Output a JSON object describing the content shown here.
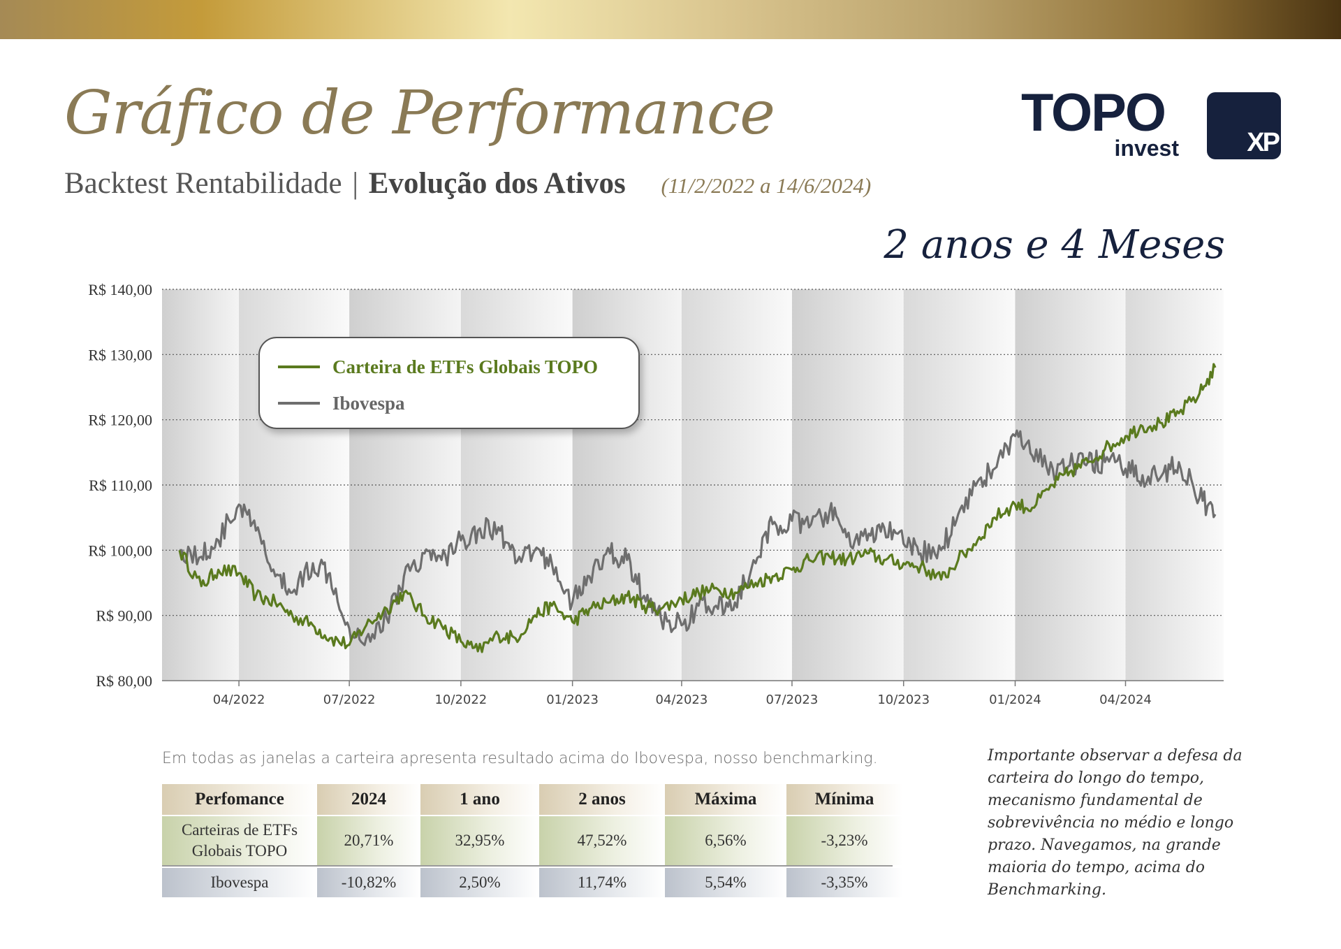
{
  "header": {
    "title": "Gráfico de Performance",
    "subtitle_main": "Backtest Rentabilidade",
    "subtitle_separator": "|",
    "subtitle_bold": "Evolução dos Ativos",
    "date_range": "(11/2/2022 a 14/6/2024)",
    "period": "2 anos e 4 Meses"
  },
  "logos": {
    "topo_word": "TOPO",
    "topo_sub": "invest",
    "xp": "XP"
  },
  "colors": {
    "green": "#5a7a1e",
    "gray": "#6e6e6e",
    "navy": "#16213d",
    "gold": "#8a7a55"
  },
  "chart_data": {
    "type": "line",
    "title": "",
    "xlabel": "",
    "ylabel": "",
    "ylim": [
      80,
      140
    ],
    "y_ticks": [
      80,
      90,
      100,
      110,
      120,
      130,
      140
    ],
    "y_tick_labels": [
      "R$ 80,00",
      "R$ 90,00",
      "R$ 100,00",
      "R$ 110,00",
      "R$ 120,00",
      "R$ 130,00",
      "R$ 140,00"
    ],
    "x_tick_labels": [
      "04/2022",
      "07/2022",
      "10/2022",
      "01/2023",
      "04/2023",
      "07/2023",
      "10/2023",
      "01/2024",
      "04/2024"
    ],
    "grid": true,
    "legend_position": "top-left",
    "x_start": "2022-02-11",
    "x_end": "2024-06-14",
    "series": [
      {
        "name": "Carteira de ETFs Globais TOPO",
        "color": "#5a7a1e",
        "points": [
          [
            "2022-02-11",
            100
          ],
          [
            "2022-03-01",
            94.5
          ],
          [
            "2022-03-15",
            97
          ],
          [
            "2022-04-01",
            96.5
          ],
          [
            "2022-04-15",
            93
          ],
          [
            "2022-05-01",
            92
          ],
          [
            "2022-05-15",
            90
          ],
          [
            "2022-06-01",
            88.5
          ],
          [
            "2022-06-15",
            86.5
          ],
          [
            "2022-07-01",
            85.5
          ],
          [
            "2022-07-15",
            88.5
          ],
          [
            "2022-08-01",
            91
          ],
          [
            "2022-08-15",
            93.5
          ],
          [
            "2022-09-01",
            90
          ],
          [
            "2022-09-15",
            88.5
          ],
          [
            "2022-10-01",
            86
          ],
          [
            "2022-10-15",
            84.5
          ],
          [
            "2022-11-01",
            87
          ],
          [
            "2022-11-15",
            86.5
          ],
          [
            "2022-12-01",
            90
          ],
          [
            "2022-12-15",
            91.5
          ],
          [
            "2023-01-01",
            89
          ],
          [
            "2023-01-15",
            91
          ],
          [
            "2023-02-01",
            92
          ],
          [
            "2023-02-15",
            93
          ],
          [
            "2023-03-01",
            91.5
          ],
          [
            "2023-03-15",
            91
          ],
          [
            "2023-04-01",
            92.5
          ],
          [
            "2023-04-15",
            93.5
          ],
          [
            "2023-05-01",
            94
          ],
          [
            "2023-05-15",
            93.5
          ],
          [
            "2023-06-01",
            95
          ],
          [
            "2023-06-15",
            96
          ],
          [
            "2023-07-01",
            97
          ],
          [
            "2023-07-15",
            98.5
          ],
          [
            "2023-08-01",
            99
          ],
          [
            "2023-08-15",
            98.5
          ],
          [
            "2023-09-01",
            99.5
          ],
          [
            "2023-09-15",
            98.5
          ],
          [
            "2023-10-01",
            98
          ],
          [
            "2023-10-15",
            97.5
          ],
          [
            "2023-11-01",
            95.5
          ],
          [
            "2023-11-15",
            98.5
          ],
          [
            "2023-12-01",
            101.5
          ],
          [
            "2023-12-15",
            105
          ],
          [
            "2024-01-01",
            107
          ],
          [
            "2024-01-15",
            106.5
          ],
          [
            "2024-02-01",
            110
          ],
          [
            "2024-02-15",
            112
          ],
          [
            "2024-03-01",
            113.5
          ],
          [
            "2024-03-15",
            115.5
          ],
          [
            "2024-04-01",
            117.5
          ],
          [
            "2024-04-15",
            119
          ],
          [
            "2024-05-01",
            119.5
          ],
          [
            "2024-05-15",
            121
          ],
          [
            "2024-06-01",
            124
          ],
          [
            "2024-06-14",
            128
          ]
        ]
      },
      {
        "name": "Ibovespa",
        "color": "#6e6e6e",
        "points": [
          [
            "2022-02-11",
            100
          ],
          [
            "2022-03-01",
            99
          ],
          [
            "2022-03-15",
            101.5
          ],
          [
            "2022-04-01",
            107
          ],
          [
            "2022-04-15",
            103
          ],
          [
            "2022-05-01",
            96
          ],
          [
            "2022-05-15",
            93.5
          ],
          [
            "2022-06-01",
            98
          ],
          [
            "2022-06-15",
            96.5
          ],
          [
            "2022-07-01",
            88
          ],
          [
            "2022-07-15",
            86.5
          ],
          [
            "2022-08-01",
            89.5
          ],
          [
            "2022-08-15",
            96
          ],
          [
            "2022-09-01",
            99.5
          ],
          [
            "2022-09-15",
            98.5
          ],
          [
            "2022-10-01",
            101.5
          ],
          [
            "2022-10-15",
            103
          ],
          [
            "2022-11-01",
            103.5
          ],
          [
            "2022-11-15",
            98
          ],
          [
            "2022-12-01",
            100
          ],
          [
            "2022-12-15",
            98
          ],
          [
            "2023-01-01",
            92
          ],
          [
            "2023-01-15",
            96
          ],
          [
            "2023-02-01",
            99.5
          ],
          [
            "2023-02-15",
            98.5
          ],
          [
            "2023-03-01",
            93
          ],
          [
            "2023-03-15",
            89.5
          ],
          [
            "2023-04-01",
            88.5
          ],
          [
            "2023-04-15",
            91.5
          ],
          [
            "2023-05-01",
            91
          ],
          [
            "2023-05-15",
            92
          ],
          [
            "2023-06-01",
            98
          ],
          [
            "2023-06-15",
            104
          ],
          [
            "2023-07-01",
            104.5
          ],
          [
            "2023-07-15",
            103.5
          ],
          [
            "2023-08-01",
            106
          ],
          [
            "2023-08-15",
            102
          ],
          [
            "2023-09-01",
            101.5
          ],
          [
            "2023-09-15",
            103.5
          ],
          [
            "2023-10-01",
            101
          ],
          [
            "2023-10-15",
            99.5
          ],
          [
            "2023-11-01",
            100
          ],
          [
            "2023-11-15",
            105.5
          ],
          [
            "2023-12-01",
            110.5
          ],
          [
            "2023-12-15",
            112.5
          ],
          [
            "2024-01-01",
            117.5
          ],
          [
            "2024-01-15",
            114.5
          ],
          [
            "2024-02-01",
            112.5
          ],
          [
            "2024-02-15",
            113
          ],
          [
            "2024-03-01",
            113.5
          ],
          [
            "2024-03-15",
            113.5
          ],
          [
            "2024-04-01",
            112.5
          ],
          [
            "2024-04-15",
            111.5
          ],
          [
            "2024-05-01",
            111.5
          ],
          [
            "2024-05-15",
            113.5
          ],
          [
            "2024-06-01",
            108
          ],
          [
            "2024-06-14",
            105.5
          ]
        ]
      }
    ]
  },
  "table": {
    "caption": "Em todas as janelas a carteira apresenta resultado acima do Ibovespa, nosso benchmarking.",
    "headers": [
      "Perfomance",
      "2024",
      "1 ano",
      "2 anos",
      "Máxima",
      "Mínima"
    ],
    "rows": [
      {
        "label_line1": "Carteiras de ETFs",
        "label_line2": "Globais TOPO",
        "values": [
          "20,71%",
          "32,95%",
          "47,52%",
          "6,56%",
          "-3,23%"
        ]
      },
      {
        "label_line1": "Ibovespa",
        "values": [
          "-10,82%",
          "2,50%",
          "11,74%",
          "5,54%",
          "-3,35%"
        ]
      }
    ]
  },
  "note": "Importante observar a defesa da carteira do longo do tempo, mecanismo fundamental de sobrevivência no médio e longo prazo. Navegamos, na grande maioria do tempo, acima do Benchmarking."
}
